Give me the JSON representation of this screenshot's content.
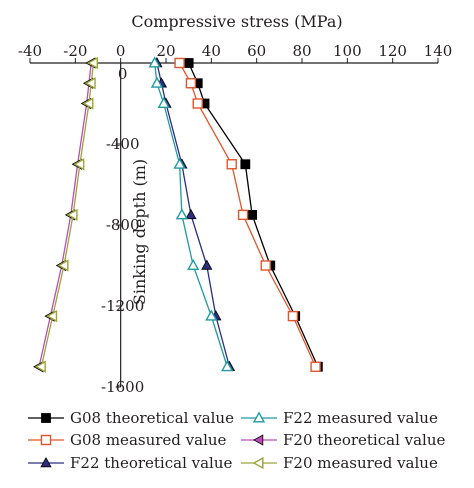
{
  "chart_data": {
    "type": "line",
    "title": "",
    "xlabel": "Compressive stress (MPa)",
    "ylabel": "Sinking depth (m)",
    "xaxis_position": "top",
    "xlim": [
      -40,
      140
    ],
    "ylim": [
      0,
      -1600
    ],
    "xticks": [
      -40,
      -20,
      0,
      20,
      40,
      60,
      80,
      100,
      120,
      140
    ],
    "yticks": [
      -400,
      -800,
      -1200,
      -1600
    ],
    "ytick_labels": [
      "-400",
      "-800",
      "-1200",
      "-1600"
    ],
    "y_origin_label": "0",
    "grid": false,
    "legend_position": "bottom",
    "series": [
      {
        "name": "G08 theoretical value",
        "color": "#000000",
        "marker": "filled-square",
        "x": [
          30,
          34,
          37,
          55,
          58,
          66,
          77,
          87
        ],
        "y": [
          0,
          -100,
          -200,
          -500,
          -750,
          -1000,
          -1250,
          -1500
        ]
      },
      {
        "name": "G08 measured value",
        "color": "#e0562a",
        "marker": "hollow-square",
        "x": [
          26,
          31,
          34,
          49,
          54,
          64,
          76,
          86
        ],
        "y": [
          0,
          -100,
          -200,
          -500,
          -750,
          -1000,
          -1250,
          -1500
        ]
      },
      {
        "name": "F22 theoretical value",
        "color": "#2b2e7e",
        "marker": "filled-triangle-up",
        "x": [
          16,
          18,
          20,
          27,
          31,
          38,
          42,
          48
        ],
        "y": [
          0,
          -100,
          -200,
          -500,
          -750,
          -1000,
          -1250,
          -1500
        ]
      },
      {
        "name": "F22 measured value",
        "color": "#1f9aa3",
        "marker": "hollow-triangle-up",
        "x": [
          15,
          16,
          19,
          26,
          27,
          32,
          40,
          47
        ],
        "y": [
          0,
          -100,
          -200,
          -500,
          -750,
          -1000,
          -1250,
          -1500
        ]
      },
      {
        "name": "F20 theoretical value",
        "color": "#b84fb4",
        "marker": "filled-triangle-left",
        "x": [
          -13,
          -14,
          -15,
          -19,
          -22,
          -26,
          -31,
          -36
        ],
        "y": [
          0,
          -100,
          -200,
          -500,
          -750,
          -1000,
          -1250,
          -1500
        ]
      },
      {
        "name": "F20 measured value",
        "color": "#9aa53a",
        "marker": "hollow-triangle-left",
        "x": [
          -12,
          -13,
          -14,
          -18,
          -21,
          -25,
          -30,
          -35
        ],
        "y": [
          0,
          -100,
          -200,
          -500,
          -750,
          -1000,
          -1250,
          -1500
        ]
      }
    ]
  }
}
